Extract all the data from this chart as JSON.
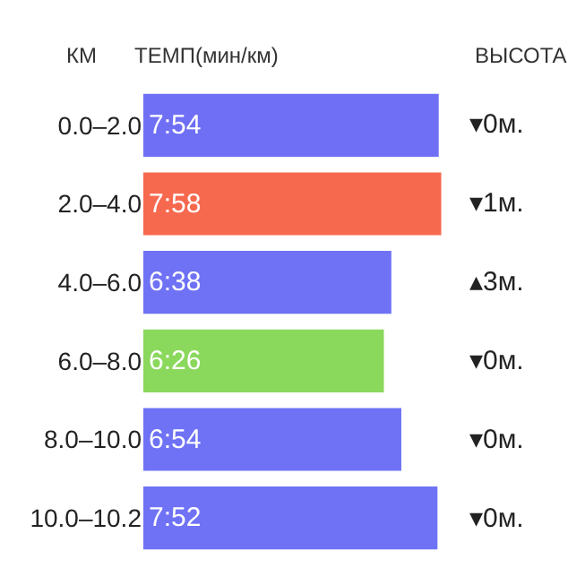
{
  "chart_data": {
    "type": "bar",
    "orientation": "horizontal",
    "data_labels": false,
    "ylabel": "КМ",
    "xlabel": "ТЕМП(мин/км)",
    "categories": [
      "0.0–2.0",
      "2.0–4.0",
      "4.0–6.0",
      "6.0–8.0",
      "8.0–10.0",
      "10.0–10.2"
    ],
    "values": [
      7.9,
      7.967,
      6.633,
      6.433,
      6.9,
      7.867
    ],
    "value_labels": [
      "7:54",
      "7:58",
      "6:38",
      "6:26",
      "6:54",
      "7:52"
    ],
    "colors": [
      "#6f6ff5",
      "#f7694f",
      "#6f72f5",
      "#8ad85c",
      "#6f72f5",
      "#6f72f5"
    ],
    "annotations": [
      "ВЫСОТА",
      "▾0м.",
      "▾1м.",
      "▴3м.",
      "▾0м.",
      "▾0м.",
      "▾0м."
    ]
  }
}
